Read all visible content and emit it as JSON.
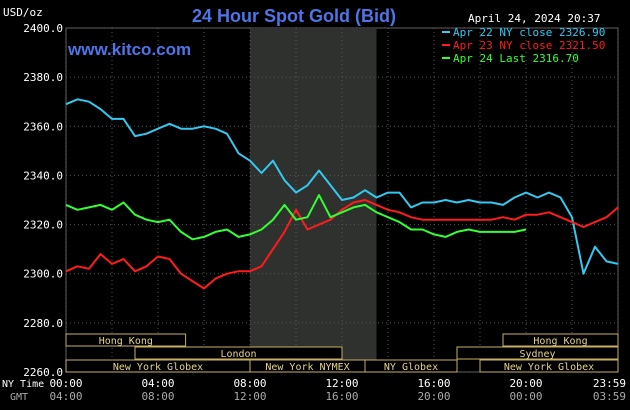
{
  "header": {
    "title": "24 Hour Spot Gold (Bid)",
    "site": "www.kitco.com",
    "unit": "USD/oz",
    "timestamp": "April 24, 2024 20:37"
  },
  "legend": [
    {
      "label": "Apr 22 NY close 2326.90",
      "color": "#35c8f0"
    },
    {
      "label": "Apr 23 NY close 2321.50",
      "color": "#ff1c1c"
    },
    {
      "label": "Apr 24 Last 2316.70",
      "color": "#34ff34"
    }
  ],
  "axis_labels": {
    "ny_time": "NY Time",
    "gmt": "GMT"
  },
  "sessions": [
    {
      "label": "Hong Kong",
      "start": -2.0,
      "end": 5.2,
      "row": 0
    },
    {
      "label": "Hong Kong",
      "start": 19.0,
      "end": 24.1,
      "row": 0
    },
    {
      "label": "London",
      "start": 3.0,
      "end": 12.0,
      "row": 1
    },
    {
      "label": "Sydney",
      "start": 17.0,
      "end": 24.1,
      "row": 1
    },
    {
      "label": "New York Globex",
      "start": -2.0,
      "end": 8.0,
      "row": 2
    },
    {
      "label": "New York NYMEX",
      "start": 8.0,
      "end": 13.0,
      "row": 2
    },
    {
      "label": "NY Globex",
      "start": 13.0,
      "end": 17.0,
      "row": 2
    },
    {
      "label": "New York Globex",
      "start": 18.0,
      "end": 24.1,
      "row": 2
    }
  ],
  "chart_data": {
    "type": "line",
    "title": "24 Hour Spot Gold (Bid)",
    "ylabel": "USD/oz",
    "ylim": [
      2260,
      2400
    ],
    "xlim": [
      0,
      24
    ],
    "grid": true,
    "legend_position": "top-right",
    "highlight_range": [
      8.0,
      13.5
    ],
    "y_ticks": [
      "2260.0",
      "2280.0",
      "2300.0",
      "2320.0",
      "2340.0",
      "2360.0",
      "2380.0",
      "2400.0"
    ],
    "x_ticks_ny": [
      "00:00",
      "04:00",
      "08:00",
      "12:00",
      "16:00",
      "20:00",
      "23:59"
    ],
    "x_ticks_gmt": [
      "04:00",
      "08:00",
      "12:00",
      "16:00",
      "20:00",
      "00:00",
      "03:59"
    ],
    "series": [
      {
        "name": "Apr 22 NY close 2326.90",
        "color": "#35c8f0",
        "x": [
          0,
          0.5,
          1,
          1.5,
          2,
          2.5,
          3,
          3.5,
          4,
          4.5,
          5,
          5.5,
          6,
          6.5,
          7,
          7.5,
          8,
          8.5,
          9,
          9.5,
          10,
          10.5,
          11,
          11.5,
          12,
          12.5,
          13,
          13.5,
          14,
          14.5,
          15,
          15.5,
          16,
          16.5,
          17,
          17.5,
          18,
          18.5,
          19,
          19.5,
          20,
          20.5,
          21,
          21.5,
          22,
          22.5,
          23,
          23.5,
          24
        ],
        "y": [
          2369,
          2371,
          2370,
          2367,
          2363,
          2363,
          2356,
          2357,
          2359,
          2361,
          2359,
          2359,
          2360,
          2359,
          2357,
          2349,
          2346,
          2341,
          2346,
          2338,
          2333,
          2336,
          2342,
          2336,
          2330,
          2331,
          2334,
          2331,
          2333,
          2333,
          2327,
          2329,
          2329,
          2330,
          2329,
          2330,
          2329,
          2329,
          2328,
          2331,
          2333,
          2331,
          2333,
          2331,
          2323,
          2300,
          2311,
          2305,
          2304
        ]
      },
      {
        "name": "Apr 23 NY close 2321.50",
        "color": "#ff1c1c",
        "x": [
          0,
          0.5,
          1,
          1.5,
          2,
          2.5,
          3,
          3.5,
          4,
          4.5,
          5,
          5.5,
          6,
          6.5,
          7,
          7.5,
          8,
          8.5,
          9,
          9.5,
          10,
          10.5,
          11,
          11.5,
          12,
          12.5,
          13,
          13.5,
          14,
          14.5,
          15,
          15.5,
          16,
          16.5,
          17,
          17.5,
          18,
          18.5,
          19,
          19.5,
          20,
          20.5,
          21,
          21.5,
          22,
          22.5,
          23,
          23.5,
          24
        ],
        "y": [
          2301,
          2303,
          2302,
          2308,
          2304,
          2306,
          2301,
          2303,
          2307,
          2306,
          2300,
          2297,
          2294,
          2298,
          2300,
          2301,
          2301,
          2303,
          2310,
          2317,
          2326,
          2318,
          2320,
          2322,
          2326,
          2329,
          2330,
          2328,
          2326,
          2325,
          2323,
          2322,
          2322,
          2322,
          2322,
          2322,
          2322,
          2322,
          2323,
          2322,
          2324,
          2324,
          2325,
          2323,
          2321,
          2319,
          2321,
          2323,
          2327
        ]
      },
      {
        "name": "Apr 24 Last 2316.70",
        "color": "#34ff34",
        "x": [
          0,
          0.5,
          1,
          1.5,
          2,
          2.5,
          3,
          3.5,
          4,
          4.5,
          5,
          5.5,
          6,
          6.5,
          7,
          7.5,
          8,
          8.5,
          9,
          9.5,
          10,
          10.5,
          11,
          11.5,
          12,
          12.5,
          13,
          13.5,
          14,
          14.5,
          15,
          15.5,
          16,
          16.5,
          17,
          17.5,
          18,
          18.5,
          19,
          19.5,
          20
        ],
        "y": [
          2328,
          2326,
          2327,
          2328,
          2326,
          2329,
          2324,
          2322,
          2321,
          2322,
          2317,
          2314,
          2315,
          2317,
          2318,
          2315,
          2316,
          2318,
          2322,
          2328,
          2322,
          2323,
          2332,
          2323,
          2325,
          2327,
          2328,
          2325,
          2323,
          2321,
          2318,
          2318,
          2316,
          2315,
          2317,
          2318,
          2317,
          2317,
          2317,
          2317,
          2318
        ]
      }
    ]
  }
}
